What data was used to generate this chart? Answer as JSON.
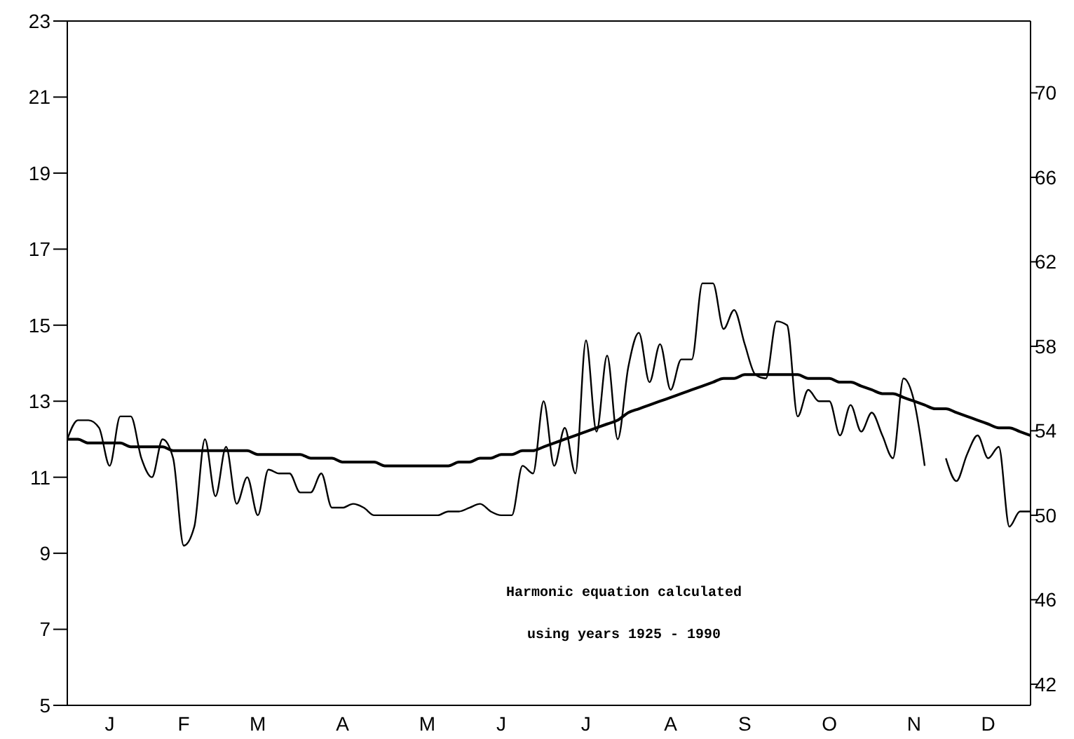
{
  "chart_data": {
    "type": "line",
    "categories": [
      null,
      null,
      null,
      null,
      "J",
      null,
      null,
      null,
      null,
      null,
      null,
      "F",
      null,
      null,
      null,
      null,
      null,
      null,
      "M",
      null,
      null,
      null,
      null,
      null,
      null,
      null,
      "A",
      null,
      null,
      null,
      null,
      null,
      null,
      null,
      "M",
      null,
      null,
      null,
      null,
      null,
      null,
      "J",
      null,
      null,
      null,
      null,
      null,
      null,
      null,
      "J",
      null,
      null,
      null,
      null,
      null,
      null,
      null,
      "A",
      null,
      null,
      null,
      null,
      null,
      null,
      "S",
      null,
      null,
      null,
      null,
      null,
      null,
      null,
      "O",
      null,
      null,
      null,
      null,
      null,
      null,
      null,
      "N",
      null,
      null,
      null,
      null,
      null,
      null,
      "D",
      null,
      null,
      null,
      null
    ],
    "ylim": [
      5,
      23
    ],
    "yticks": [
      5,
      7,
      9,
      11,
      13,
      15,
      17,
      19,
      21,
      23
    ],
    "y2lim": [
      41,
      73.4
    ],
    "y2ticks": [
      42,
      46,
      50,
      54,
      58,
      62,
      66,
      70
    ],
    "grid": false,
    "legend": false,
    "marker": "none",
    "line_style": "solid",
    "annotations": [
      "Harmonic equation calculated",
      "using years 1925 - 1990"
    ],
    "series": [
      {
        "color": "#000000",
        "values": [
          12.0,
          12.5,
          12.5,
          12.3,
          11.3,
          12.6,
          12.6,
          11.5,
          11.0,
          12.0,
          11.5,
          9.2,
          9.7,
          12.0,
          10.5,
          11.8,
          10.3,
          11.0,
          10.0,
          11.2,
          11.1,
          11.1,
          10.6,
          10.6,
          11.1,
          10.2,
          10.2,
          10.3,
          10.2,
          10.0,
          10.0,
          10.0,
          10.0,
          10.0,
          10.0,
          10.0,
          10.1,
          10.1,
          10.2,
          10.3,
          10.1,
          10.0,
          10.0,
          11.3,
          11.1,
          13.0,
          11.3,
          12.3,
          11.1,
          14.6,
          12.2,
          14.2,
          12.0,
          13.9,
          14.8,
          13.5,
          14.5,
          13.3,
          14.1,
          14.1,
          16.1,
          16.1,
          14.9,
          15.4,
          14.5,
          13.7,
          13.6,
          15.1,
          15.0,
          12.6,
          13.3,
          13.0,
          13.0,
          12.1,
          12.9,
          12.2,
          12.7,
          12.1,
          11.5,
          13.6,
          13.0,
          11.3,
          null,
          11.5,
          10.9,
          11.6,
          12.1,
          11.5,
          11.8,
          9.7,
          10.1,
          10.1
        ]
      },
      {
        "color": "#000000",
        "values": [
          12.0,
          12.0,
          11.9,
          11.9,
          11.9,
          11.9,
          11.8,
          11.8,
          11.8,
          11.8,
          11.7,
          11.7,
          11.7,
          11.7,
          11.7,
          11.7,
          11.7,
          11.7,
          11.6,
          11.6,
          11.6,
          11.6,
          11.6,
          11.5,
          11.5,
          11.5,
          11.4,
          11.4,
          11.4,
          11.4,
          11.3,
          11.3,
          11.3,
          11.3,
          11.3,
          11.3,
          11.3,
          11.4,
          11.4,
          11.5,
          11.5,
          11.6,
          11.6,
          11.7,
          11.7,
          11.8,
          11.9,
          12.0,
          12.1,
          12.2,
          12.3,
          12.4,
          12.5,
          12.7,
          12.8,
          12.9,
          13.0,
          13.1,
          13.2,
          13.3,
          13.4,
          13.5,
          13.6,
          13.6,
          13.7,
          13.7,
          13.7,
          13.7,
          13.7,
          13.7,
          13.6,
          13.6,
          13.6,
          13.5,
          13.5,
          13.4,
          13.3,
          13.2,
          13.2,
          13.1,
          13.0,
          12.9,
          12.8,
          12.8,
          12.7,
          12.6,
          12.5,
          12.4,
          12.3,
          12.3,
          12.2,
          12.1
        ]
      }
    ]
  }
}
